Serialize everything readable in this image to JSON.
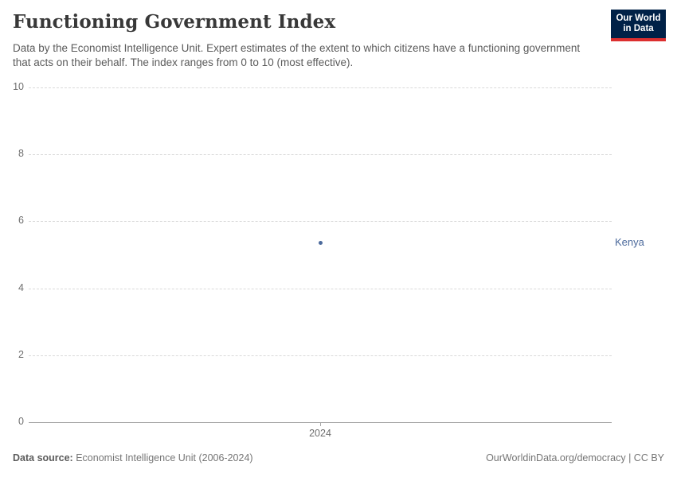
{
  "header": {
    "title": "Functioning Government Index",
    "subtitle": "Data by the Economist Intelligence Unit. Expert estimates of the extent to which citizens have a functioning government that acts on their behalf. The index ranges from 0 to 10 (most effective).",
    "logo": {
      "line1": "Our World",
      "line2": "in Data"
    }
  },
  "footer": {
    "source_label": "Data source:",
    "source_text": "Economist Intelligence Unit (2006-2024)",
    "attribution": "OurWorldinData.org/democracy | CC BY"
  },
  "colors": {
    "series": "#4c6a9c",
    "logo_bg": "#002147",
    "logo_red": "#dc2f2f",
    "gridline": "#dadada",
    "axis": "#a7a7a7",
    "tick_text": "#6e6e6e"
  },
  "chart_data": {
    "type": "scatter",
    "title": "Functioning Government Index",
    "x": [
      2024
    ],
    "xticks": [
      "2024"
    ],
    "series": [
      {
        "name": "Kenya",
        "values": [
          5.36
        ],
        "color": "#4c6a9c"
      }
    ],
    "xlabel": "",
    "ylabel": "",
    "ylim": [
      0,
      10
    ],
    "yticks": [
      0,
      2,
      4,
      6,
      8,
      10
    ],
    "grid": "horizontal-dashed",
    "legend_position": "right-of-point"
  }
}
